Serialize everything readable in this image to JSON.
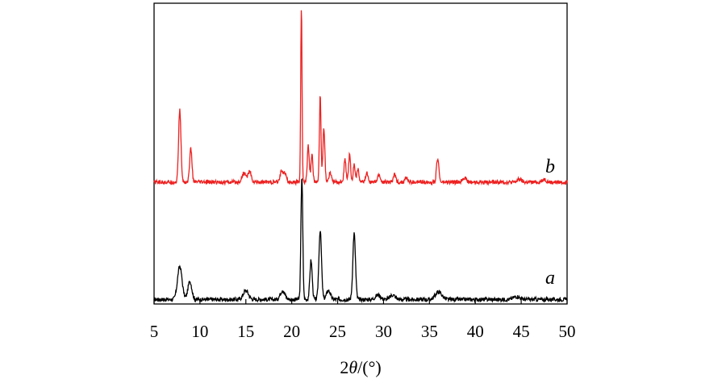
{
  "chart_data": {
    "type": "line",
    "title": "",
    "xlabel_prefix": "2",
    "xlabel_symbol": "θ",
    "xlabel_suffix": "/(°)",
    "ylabel": "",
    "xlim": [
      5,
      50
    ],
    "ylim": [
      0,
      100
    ],
    "x_ticks": [
      5,
      10,
      15,
      20,
      25,
      30,
      35,
      40,
      45,
      50
    ],
    "grid": false,
    "legend": "none",
    "series": [
      {
        "name": "a",
        "color": "#000000",
        "baseline": 1.5,
        "peaks": [
          [
            7.8,
            11,
            0.35
          ],
          [
            8.9,
            6,
            0.3
          ],
          [
            15,
            3,
            0.4
          ],
          [
            19,
            3,
            0.35
          ],
          [
            21.1,
            41,
            0.14
          ],
          [
            22.1,
            13,
            0.18
          ],
          [
            23.1,
            23,
            0.2
          ],
          [
            24,
            3,
            0.3
          ],
          [
            26.8,
            22,
            0.2
          ],
          [
            29.4,
            1.5,
            0.4
          ],
          [
            31,
            1.5,
            0.4
          ],
          [
            36,
            2.5,
            0.5
          ],
          [
            44.5,
            1,
            0.5
          ]
        ]
      },
      {
        "name": "b",
        "color": "#ee2020",
        "baseline": 40.5,
        "peaks": [
          [
            7.8,
            24,
            0.18
          ],
          [
            9,
            11,
            0.18
          ],
          [
            14.8,
            3,
            0.3
          ],
          [
            15.4,
            3.5,
            0.25
          ],
          [
            18.9,
            4,
            0.22
          ],
          [
            19.3,
            3,
            0.2
          ],
          [
            21.05,
            58,
            0.1
          ],
          [
            21.8,
            12,
            0.15
          ],
          [
            22.2,
            9,
            0.15
          ],
          [
            23.1,
            29,
            0.12
          ],
          [
            23.5,
            18,
            0.15
          ],
          [
            24.2,
            3,
            0.2
          ],
          [
            25.8,
            7.5,
            0.15
          ],
          [
            26.3,
            9,
            0.15
          ],
          [
            26.8,
            6,
            0.15
          ],
          [
            27.2,
            4.5,
            0.15
          ],
          [
            28.2,
            3,
            0.2
          ],
          [
            29.5,
            2.5,
            0.2
          ],
          [
            31.2,
            2.5,
            0.2
          ],
          [
            32.5,
            1.5,
            0.2
          ],
          [
            35.9,
            8,
            0.18
          ],
          [
            38.8,
            1.5,
            0.3
          ],
          [
            44.8,
            1,
            0.3
          ],
          [
            47.5,
            1,
            0.3
          ]
        ]
      }
    ]
  }
}
